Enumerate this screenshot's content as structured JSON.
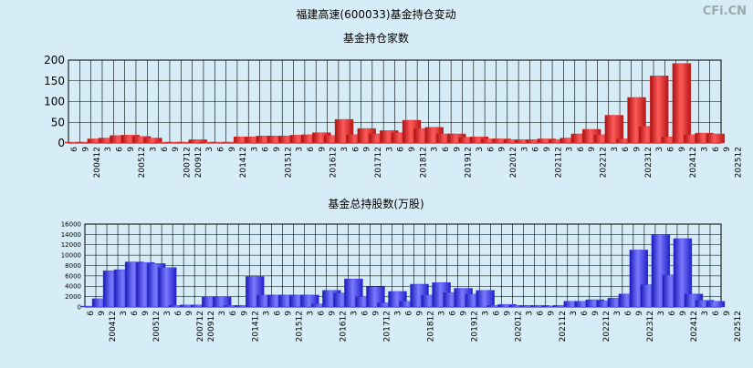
{
  "title": "福建高速(600033)基金持仓变动",
  "watermark": "CFi.CN",
  "colors": {
    "background": "#d6ecf6",
    "red_bar": "#e02b2b",
    "blue_bar": "#3434f0",
    "grid": "#000000"
  },
  "chart_data": [
    {
      "type": "bar",
      "title": "基金持仓家数",
      "ylim": [
        0,
        200
      ],
      "yticks": [
        0,
        50,
        100,
        150,
        200
      ],
      "tick_labels": [
        "6",
        "9",
        "200412",
        "3",
        "6",
        "9",
        "200512",
        "3",
        "6",
        "9",
        "200712",
        "200912",
        "3",
        "6",
        "9",
        "201412",
        "3",
        "6",
        "9",
        "201512",
        "3",
        "6",
        "9",
        "201612",
        "3",
        "6",
        "9",
        "201712",
        "3",
        "6",
        "9",
        "201812",
        "3",
        "6",
        "9",
        "201912",
        "3",
        "6",
        "9",
        "202012",
        "3",
        "6",
        "9",
        "202112",
        "3",
        "6",
        "9",
        "202212",
        "3",
        "6",
        "9",
        "202312",
        "3",
        "6",
        "9",
        "202412",
        "3",
        "6",
        "9",
        "202512"
      ],
      "values": [
        2,
        2,
        10,
        12,
        18,
        19,
        16,
        12,
        2,
        2,
        2,
        8,
        2,
        2,
        2,
        15,
        15,
        17,
        17,
        17,
        19,
        20,
        25,
        18,
        57,
        20,
        35,
        22,
        30,
        25,
        55,
        35,
        38,
        22,
        22,
        14,
        15,
        10,
        10,
        8,
        8,
        8,
        10,
        8,
        12,
        22,
        33,
        20,
        67,
        10,
        110,
        40,
        162,
        15,
        192,
        20,
        24,
        22
      ],
      "grid": true
    },
    {
      "type": "bar",
      "title": "基金总持股数(万股)",
      "ylim": [
        0,
        16000
      ],
      "yticks": [
        0,
        2000,
        4000,
        6000,
        8000,
        10000,
        12000,
        14000,
        16000
      ],
      "tick_labels": [
        "6",
        "9",
        "200412",
        "3",
        "6",
        "9",
        "200512",
        "3",
        "6",
        "9",
        "200712",
        "200912",
        "3",
        "6",
        "9",
        "201412",
        "3",
        "6",
        "9",
        "201512",
        "3",
        "6",
        "9",
        "201612",
        "3",
        "6",
        "9",
        "201712",
        "3",
        "6",
        "9",
        "201812",
        "3",
        "6",
        "9",
        "201912",
        "3",
        "6",
        "9",
        "202012",
        "3",
        "6",
        "9",
        "202112",
        "3",
        "6",
        "9",
        "202212",
        "3",
        "6",
        "9",
        "202312",
        "3",
        "6",
        "9",
        "202412",
        "3",
        "6",
        "9",
        "202512"
      ],
      "values": [
        150,
        1600,
        7000,
        7200,
        8700,
        8600,
        8400,
        7600,
        300,
        400,
        400,
        2000,
        2000,
        300,
        300,
        5900,
        2300,
        2300,
        2300,
        2300,
        2300,
        600,
        3200,
        2700,
        5400,
        2000,
        3900,
        800,
        3000,
        1100,
        4400,
        2300,
        4700,
        2800,
        3600,
        2500,
        3200,
        300,
        500,
        300,
        300,
        300,
        200,
        300,
        1100,
        1100,
        1400,
        1200,
        1700,
        2500,
        11000,
        4300,
        14000,
        6200,
        13200,
        2500,
        1300,
        1100
      ],
      "grid": true
    }
  ]
}
